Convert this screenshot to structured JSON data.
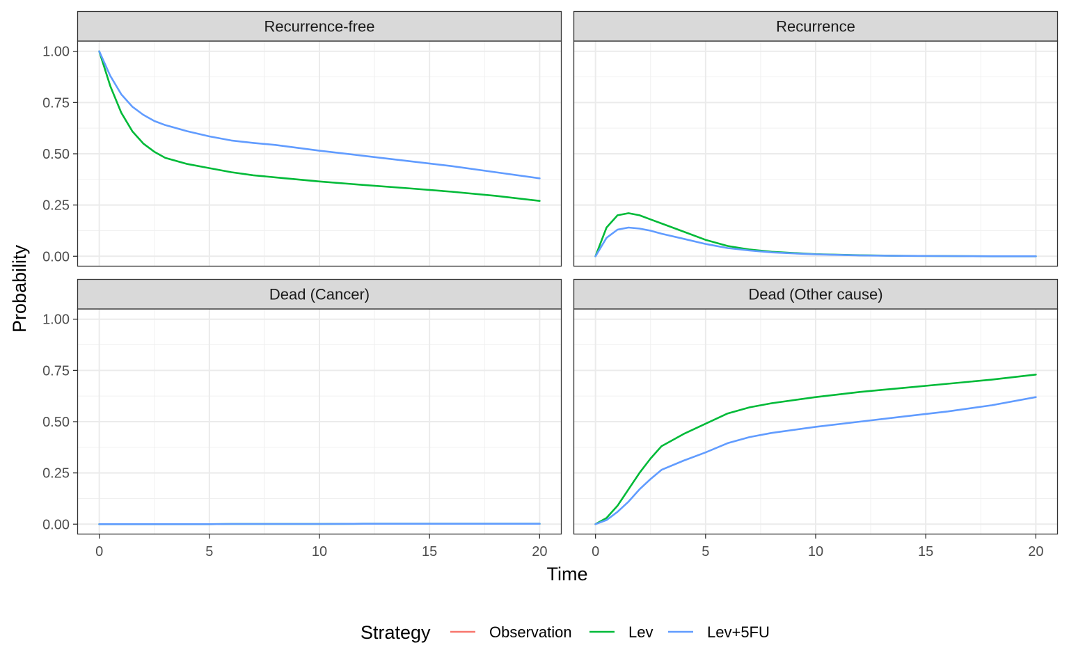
{
  "chart_data": {
    "type": "line",
    "facet_layout": "2x2",
    "xlabel": "Time",
    "ylabel": "Probability",
    "xlim": [
      0,
      20
    ],
    "ylim": [
      0,
      1
    ],
    "x_ticks": [
      0,
      5,
      10,
      15,
      20
    ],
    "y_ticks": [
      0,
      0.25,
      0.5,
      0.75,
      1
    ],
    "y_tick_labels": [
      "0.00",
      "0.25",
      "0.50",
      "0.75",
      "1.00"
    ],
    "grid": true,
    "legend": {
      "title": "Strategy",
      "position": "bottom",
      "entries": [
        {
          "name": "Observation",
          "color": "#F8766D"
        },
        {
          "name": "Lev",
          "color": "#00BA38"
        },
        {
          "name": "Lev+5FU",
          "color": "#619CFF"
        }
      ]
    },
    "x": [
      0,
      0.5,
      1,
      1.5,
      2,
      2.5,
      3,
      4,
      5,
      6,
      7,
      8,
      10,
      12,
      14,
      16,
      18,
      20
    ],
    "panels": [
      {
        "title": "Recurrence-free",
        "series": [
          {
            "name": "Lev",
            "values": [
              1.0,
              0.83,
              0.7,
              0.61,
              0.55,
              0.51,
              0.48,
              0.45,
              0.43,
              0.41,
              0.395,
              0.385,
              0.365,
              0.348,
              0.332,
              0.315,
              0.295,
              0.27
            ]
          },
          {
            "name": "Lev+5FU",
            "values": [
              1.0,
              0.88,
              0.79,
              0.73,
              0.69,
              0.66,
              0.64,
              0.61,
              0.585,
              0.565,
              0.553,
              0.543,
              0.515,
              0.49,
              0.465,
              0.44,
              0.41,
              0.38
            ]
          }
        ]
      },
      {
        "title": "Recurrence",
        "series": [
          {
            "name": "Lev",
            "values": [
              0.0,
              0.14,
              0.2,
              0.21,
              0.2,
              0.18,
              0.16,
              0.12,
              0.08,
              0.05,
              0.033,
              0.022,
              0.01,
              0.005,
              0.002,
              0.001,
              0.0,
              0.0
            ]
          },
          {
            "name": "Lev+5FU",
            "values": [
              0.0,
              0.09,
              0.13,
              0.14,
              0.135,
              0.125,
              0.11,
              0.085,
              0.06,
              0.04,
              0.028,
              0.019,
              0.009,
              0.004,
              0.002,
              0.001,
              0.0,
              0.0
            ]
          }
        ]
      },
      {
        "title": "Dead (Cancer)",
        "series": [
          {
            "name": "Lev",
            "values": [
              0,
              0,
              0,
              0,
              0,
              0,
              0,
              0,
              0,
              0.001,
              0.001,
              0.001,
              0.001,
              0.002,
              0.002,
              0.002,
              0.002,
              0.002
            ]
          },
          {
            "name": "Lev+5FU",
            "values": [
              0,
              0,
              0,
              0,
              0,
              0,
              0,
              0,
              0,
              0.001,
              0.001,
              0.001,
              0.001,
              0.002,
              0.002,
              0.002,
              0.002,
              0.002
            ]
          }
        ]
      },
      {
        "title": "Dead (Other cause)",
        "series": [
          {
            "name": "Lev",
            "values": [
              0.0,
              0.03,
              0.09,
              0.17,
              0.25,
              0.32,
              0.38,
              0.44,
              0.49,
              0.54,
              0.57,
              0.59,
              0.62,
              0.645,
              0.665,
              0.685,
              0.705,
              0.73
            ]
          },
          {
            "name": "Lev+5FU",
            "values": [
              0.0,
              0.02,
              0.06,
              0.11,
              0.17,
              0.22,
              0.265,
              0.31,
              0.35,
              0.395,
              0.425,
              0.445,
              0.475,
              0.5,
              0.525,
              0.55,
              0.58,
              0.62
            ]
          }
        ]
      }
    ]
  }
}
